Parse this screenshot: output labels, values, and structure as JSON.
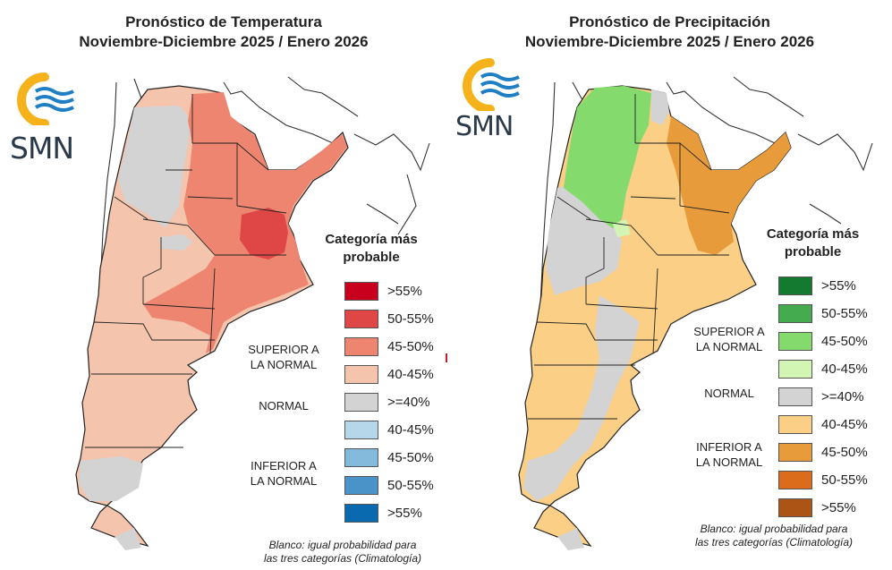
{
  "temperature_panel": {
    "title_line1": "Pronóstico de Temperatura",
    "title_line2": "Noviembre-Diciembre 2025 / Enero 2026",
    "logo_text": "SMN",
    "legend_title_line1": "Categoría más",
    "legend_title_line2": "probable",
    "legend": [
      {
        "label": ">55%",
        "color": "#c8001e"
      },
      {
        "label": "50-55%",
        "color": "#df4646"
      },
      {
        "label": "45-50%",
        "color": "#ee8570"
      },
      {
        "label": "40-45%",
        "color": "#f5c4ad"
      },
      {
        "label": ">=40%",
        "color": "#d3d3d3"
      },
      {
        "label": "40-45%",
        "color": "#b6d7ea"
      },
      {
        "label": "45-50%",
        "color": "#84bbdc"
      },
      {
        "label": "50-55%",
        "color": "#4a93c9"
      },
      {
        "label": ">55%",
        "color": "#0a6ab0"
      }
    ],
    "category_superior_line1": "SUPERIOR A",
    "category_superior_line2": "LA NORMAL",
    "category_normal": "NORMAL",
    "category_inferior_line1": "INFERIOR A",
    "category_inferior_line2": "LA NORMAL",
    "note_line1": "Blanco: igual probabilidad para",
    "note_line2": "las tres categorías (Climatología)"
  },
  "precipitation_panel": {
    "title_line1": "Pronóstico de Precipitación",
    "title_line2": "Noviembre-Diciembre 2025 / Enero 2026",
    "logo_text": "SMN",
    "legend_title_line1": "Categoría más",
    "legend_title_line2": "probable",
    "legend": [
      {
        "label": ">55%",
        "color": "#137a30"
      },
      {
        "label": "50-55%",
        "color": "#45ab4f"
      },
      {
        "label": "45-50%",
        "color": "#85da6e"
      },
      {
        "label": "40-45%",
        "color": "#d2f5b3"
      },
      {
        "label": ">=40%",
        "color": "#d3d3d3"
      },
      {
        "label": "40-45%",
        "color": "#fbcf85"
      },
      {
        "label": "45-50%",
        "color": "#e89b3a"
      },
      {
        "label": "50-55%",
        "color": "#db6c1b"
      },
      {
        "label": ">55%",
        "color": "#ab5416"
      }
    ],
    "category_superior_line1": "SUPERIOR A",
    "category_superior_line2": "LA NORMAL",
    "category_normal": "NORMAL",
    "category_inferior_line1": "INFERIOR A",
    "category_inferior_line2": "LA NORMAL",
    "note_line1": "Blanco: igual probabilidad para",
    "note_line2": "las tres categorías (Climatología)"
  },
  "logo_colors": {
    "ring": "#f6b21a",
    "waves": "#1e7fc4"
  }
}
